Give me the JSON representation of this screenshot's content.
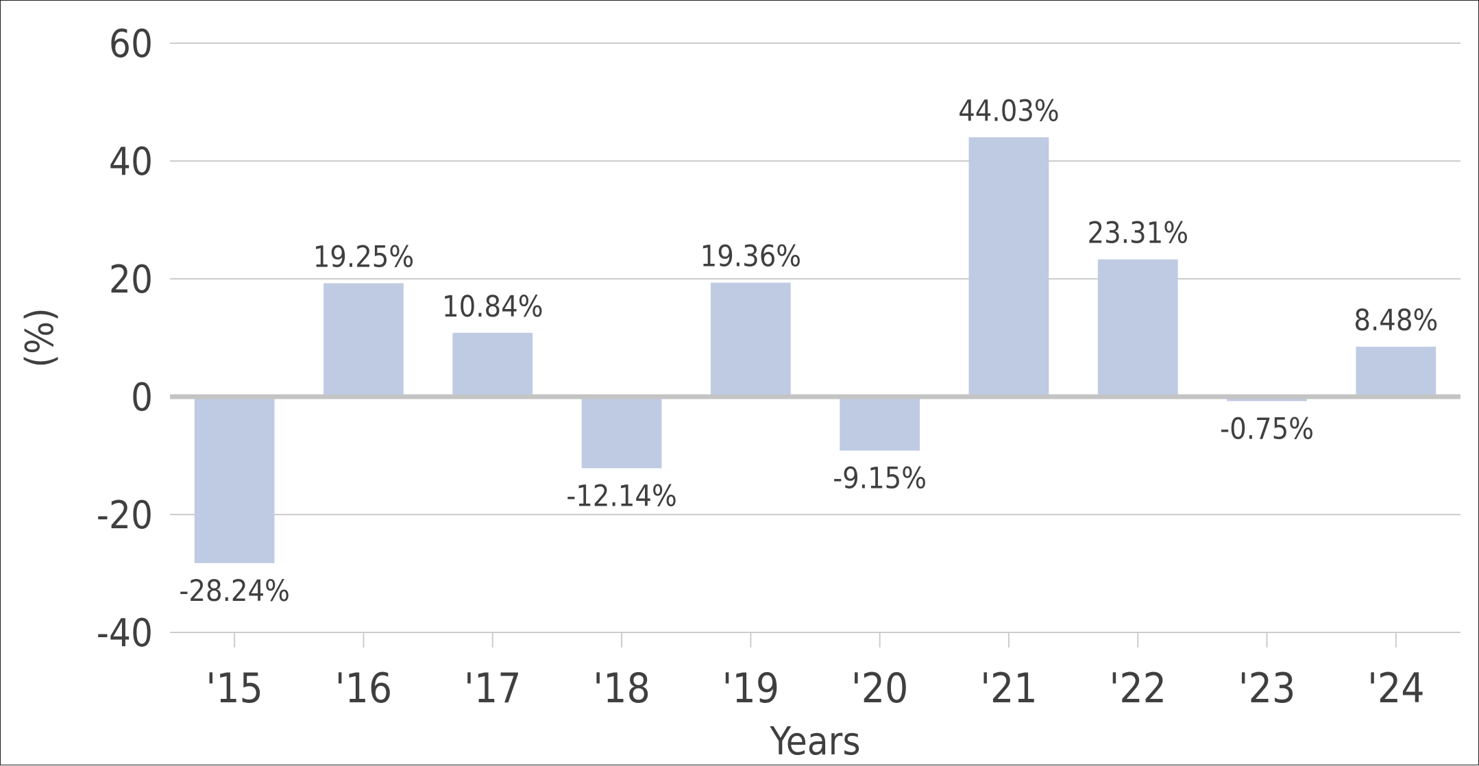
{
  "chart_data": {
    "type": "bar",
    "categories": [
      "'15",
      "'16",
      "'17",
      "'18",
      "'19",
      "'20",
      "'21",
      "'22",
      "'23",
      "'24"
    ],
    "values": [
      -28.24,
      19.25,
      10.84,
      -12.14,
      19.36,
      -9.15,
      44.03,
      23.31,
      -0.75,
      8.48
    ],
    "data_labels": [
      "-28.24%",
      "19.25%",
      "10.84%",
      "-12.14%",
      "19.36%",
      "-9.15%",
      "44.03%",
      "23.31%",
      "-0.75%",
      "8.48%"
    ],
    "xlabel": "Years",
    "ylabel": "(%)",
    "ylim": [
      -40,
      60
    ],
    "yticks": [
      "60",
      "40",
      "20",
      "0",
      "-20",
      "-40"
    ],
    "grid": true,
    "legend": "none",
    "bar_color": "#bfcbe3",
    "grid_color": "#cccccc",
    "zero_line_color": "#c4c4c4",
    "text_color": "#3f3f3f"
  }
}
